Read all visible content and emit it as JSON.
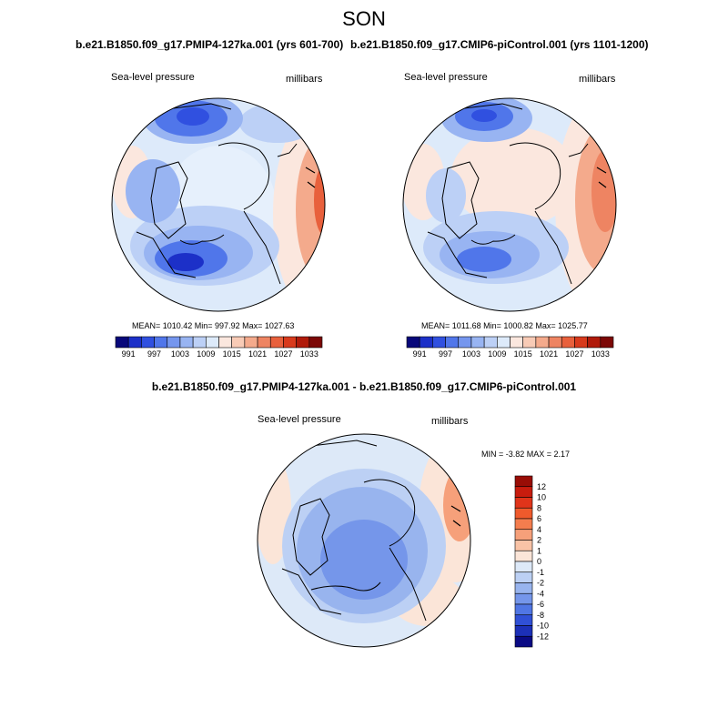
{
  "figure": {
    "season": "SON",
    "panel_top_left_title": "b.e21.B1850.f09_g17.PMIP4-127ka.001 (yrs 601-700)",
    "panel_top_right_title": "b.e21.B1850.f09_g17.CMIP6-piControl.001 (yrs 1101-1200)",
    "diff_title": "b.e21.B1850.f09_g17.PMIP4-127ka.001 - b.e21.B1850.f09_g17.CMIP6-piControl.001"
  },
  "chart_data": [
    {
      "type": "polar-contour-map",
      "id": "pmip4-127ka",
      "variable": "Sea-level pressure",
      "units": "millibars",
      "stats_text": "MEAN= 1010.42  Min= 997.92  Max= 1027.63",
      "mean": 1010.42,
      "min": 997.92,
      "max": 1027.63,
      "colorbar": {
        "orientation": "horizontal",
        "tick_labels": [
          "991",
          "997",
          "1003",
          "1009",
          "1015",
          "1021",
          "1027",
          "1033"
        ],
        "colors": [
          "#08087a",
          "#1c30c8",
          "#3050e0",
          "#5076ea",
          "#7596ee",
          "#98b4f2",
          "#bcd0f6",
          "#ddeafa",
          "#fbe7de",
          "#f8cbb6",
          "#f4aa8c",
          "#ee8462",
          "#e8603c",
          "#d83a1c",
          "#b01a0a",
          "#7c0806"
        ]
      }
    },
    {
      "type": "polar-contour-map",
      "id": "cmip6-picontrol",
      "variable": "Sea-level pressure",
      "units": "millibars",
      "stats_text": "MEAN= 1011.68  Min= 1000.82  Max= 1025.77",
      "mean": 1011.68,
      "min": 1000.82,
      "max": 1025.77,
      "colorbar": {
        "orientation": "horizontal",
        "tick_labels": [
          "991",
          "997",
          "1003",
          "1009",
          "1015",
          "1021",
          "1027",
          "1033"
        ],
        "colors": [
          "#08087a",
          "#1c30c8",
          "#3050e0",
          "#5076ea",
          "#7596ee",
          "#98b4f2",
          "#bcd0f6",
          "#ddeafa",
          "#fbe7de",
          "#f8cbb6",
          "#f4aa8c",
          "#ee8462",
          "#e8603c",
          "#d83a1c",
          "#b01a0a",
          "#7c0806"
        ]
      }
    },
    {
      "type": "polar-contour-map",
      "id": "difference",
      "variable": "Sea-level pressure",
      "units": "millibars",
      "stats_text": "MIN =  -3.82 MAX =   2.17",
      "min": -3.82,
      "max": 2.17,
      "colorbar": {
        "orientation": "vertical",
        "tick_labels": [
          "12",
          "10",
          "8",
          "6",
          "4",
          "2",
          "1",
          "0",
          "-1",
          "-2",
          "-4",
          "-6",
          "-8",
          "-10",
          "-12"
        ],
        "colors": [
          "#990d06",
          "#c81c0e",
          "#e0341a",
          "#ef5a2c",
          "#f47d4e",
          "#f6a07a",
          "#f9c3a6",
          "#fbe5d8",
          "#dde9f8",
          "#bcd0f4",
          "#98b4ee",
          "#7596ea",
          "#5076e4",
          "#3050d6",
          "#1c30b8",
          "#0a0a84"
        ]
      }
    }
  ]
}
